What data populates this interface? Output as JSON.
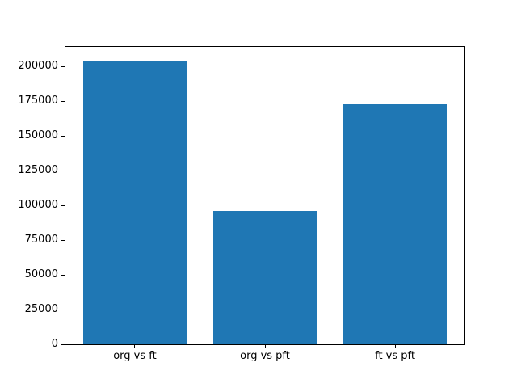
{
  "figure": {
    "background": "#ffffff"
  },
  "chart_data": {
    "type": "bar",
    "title": "",
    "xlabel": "",
    "ylabel": "",
    "categories": [
      "org vs ft",
      "org vs pft",
      "ft vs pft"
    ],
    "values": [
      204000,
      95800,
      173000
    ],
    "ylim": [
      0,
      214800
    ],
    "yticks": [
      0,
      25000,
      50000,
      75000,
      100000,
      125000,
      150000,
      175000,
      200000
    ],
    "bar_width_fraction": 0.8,
    "bar_color": "#1f77b4",
    "axis_color": "#000000",
    "tick_label_color": "#000000",
    "grid": false,
    "legend": null
  }
}
